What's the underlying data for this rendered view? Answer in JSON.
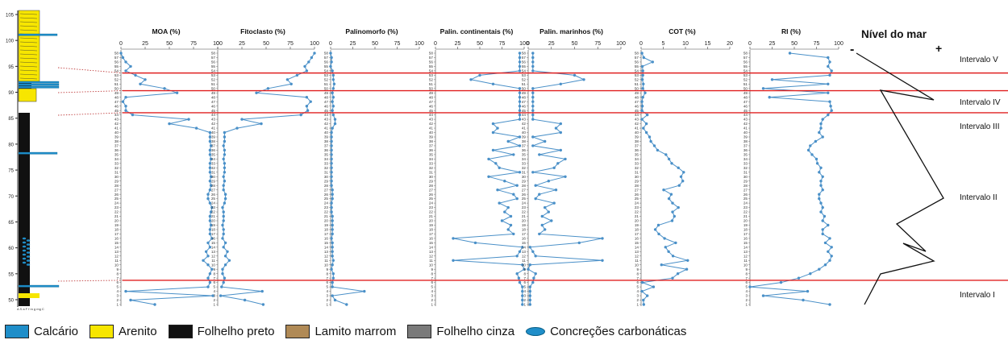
{
  "colors": {
    "series": "#4a90c8",
    "boundary": "#e02020",
    "connector": "#c04040",
    "sealevel": "#111111",
    "calcario": "#1f8ec9",
    "arenito": "#f7e600",
    "folhelho_preto": "#111111",
    "lamito_marrom": "#b08a56",
    "folhelho_cinza": "#7a7a7a",
    "concrecoes": "#1f8ec9"
  },
  "section": {
    "ticks": [
      "105",
      "100",
      "95",
      "90",
      "85",
      "80",
      "75",
      "70",
      "65",
      "60",
      "55",
      "50"
    ],
    "scale_label": "A  S  a F   f  m  g mg C"
  },
  "chart_data": {
    "type": "line",
    "samples": [
      "1",
      "2",
      "3",
      "4",
      "5",
      "6",
      "7",
      "8",
      "9",
      "10",
      "11",
      "12",
      "13",
      "14",
      "15",
      "16",
      "17",
      "18",
      "19",
      "20",
      "21",
      "22",
      "23",
      "24",
      "25",
      "26",
      "27",
      "28",
      "29",
      "30",
      "31",
      "32",
      "33",
      "34",
      "35",
      "36",
      "37",
      "38",
      "39",
      "40",
      "41",
      "42",
      "43",
      "44",
      "45",
      "46",
      "47",
      "48",
      "49",
      "50",
      "51",
      "52",
      "53",
      "54",
      "55",
      "56",
      "57",
      "58"
    ],
    "series": [
      {
        "name": "MOA (%)",
        "xlim": [
          0,
          100
        ],
        "ticks": [
          "0",
          "25",
          "50",
          "75",
          "100"
        ],
        "values": [
          35,
          10,
          95,
          5,
          90,
          92,
          90,
          92,
          94,
          90,
          85,
          90,
          88,
          92,
          90,
          94,
          92,
          92,
          93,
          92,
          92,
          93,
          94,
          92,
          90,
          90,
          92,
          93,
          92,
          93,
          92,
          92,
          92,
          93,
          92,
          92,
          93,
          92,
          92,
          92,
          78,
          50,
          70,
          12,
          5,
          5,
          2,
          5,
          58,
          45,
          20,
          25,
          15,
          5,
          10,
          5,
          2,
          0
        ]
      },
      {
        "name": "Fitoclasto (%)",
        "xlim": [
          0,
          100
        ],
        "ticks": [
          "0",
          "25",
          "50",
          "75",
          "100"
        ],
        "values": [
          47,
          28,
          3,
          46,
          4,
          6,
          7,
          5,
          5,
          8,
          12,
          8,
          10,
          6,
          8,
          5,
          6,
          6,
          5,
          6,
          6,
          6,
          5,
          7,
          8,
          8,
          6,
          6,
          7,
          6,
          7,
          7,
          7,
          6,
          7,
          7,
          6,
          7,
          7,
          7,
          20,
          45,
          25,
          86,
          93,
          92,
          96,
          92,
          40,
          52,
          76,
          72,
          82,
          92,
          90,
          94,
          97,
          100
        ]
      },
      {
        "name": "Palinomorfo (%)",
        "xlim": [
          0,
          100
        ],
        "ticks": [
          "0",
          "25",
          "50",
          "75",
          "100"
        ],
        "values": [
          18,
          5,
          2,
          38,
          2,
          2,
          3,
          3,
          1,
          2,
          3,
          2,
          2,
          2,
          2,
          1,
          2,
          2,
          2,
          2,
          2,
          1,
          1,
          1,
          2,
          2,
          2,
          1,
          1,
          1,
          1,
          1,
          1,
          1,
          1,
          1,
          1,
          1,
          1,
          1,
          2,
          5,
          5,
          3,
          2,
          3,
          2,
          3,
          2,
          3,
          4,
          3,
          3,
          2,
          0,
          1,
          1,
          0
        ]
      },
      {
        "name": "Palin. continentais (%)",
        "xlim": [
          0,
          100
        ],
        "ticks": [
          "0",
          "25",
          "50",
          "75",
          "100"
        ],
        "values": [
          98,
          98,
          98,
          98,
          98,
          95,
          94,
          92,
          100,
          98,
          20,
          92,
          95,
          98,
          45,
          20,
          88,
          82,
          85,
          75,
          85,
          78,
          82,
          72,
          92,
          88,
          70,
          92,
          78,
          60,
          95,
          72,
          68,
          60,
          88,
          65,
          95,
          82,
          95,
          65,
          70,
          65,
          95,
          95,
          95,
          95,
          95,
          95,
          95,
          95,
          65,
          40,
          50,
          95,
          95,
          95,
          95,
          95
        ]
      },
      {
        "name": "Palin. marinhos (%)",
        "xlim": [
          0,
          100
        ],
        "ticks": [
          "0",
          "25",
          "50",
          "75",
          "100"
        ],
        "values": [
          2,
          2,
          2,
          2,
          2,
          5,
          6,
          8,
          0,
          2,
          80,
          8,
          5,
          2,
          55,
          80,
          12,
          18,
          15,
          25,
          15,
          22,
          18,
          28,
          8,
          12,
          30,
          8,
          22,
          40,
          5,
          28,
          32,
          40,
          12,
          35,
          5,
          18,
          5,
          35,
          30,
          35,
          5,
          5,
          5,
          5,
          5,
          5,
          5,
          5,
          35,
          60,
          50,
          5,
          5,
          5,
          5,
          5
        ]
      },
      {
        "name": "COT (%)",
        "xlim": [
          0,
          20
        ],
        "ticks": [
          "0",
          "5",
          "10",
          "15",
          "20"
        ],
        "values": [
          0.6,
          0.5,
          1.4,
          0.2,
          2.8,
          0.3,
          7.1,
          8.3,
          10.3,
          4.6,
          10.5,
          7.2,
          6.2,
          5.5,
          7.8,
          5.3,
          4.0,
          3.2,
          3.9,
          7.0,
          7.5,
          7.1,
          8.4,
          7.1,
          6.3,
          6.8,
          5.1,
          8.6,
          9.4,
          9.0,
          9.6,
          8.4,
          6.9,
          6.3,
          5.6,
          3.7,
          3.0,
          2.2,
          1.9,
          1.2,
          0.5,
          1.2,
          0.2,
          1.4,
          0.2,
          0.3,
          0.2,
          0.4,
          0.9,
          0.4,
          0.5,
          0.3,
          0.4,
          0.4,
          0.3,
          2.6,
          0.6,
          0.2
        ]
      },
      {
        "name": "RI (%)",
        "xlim": [
          0,
          100
        ],
        "ticks": [
          "0",
          "25",
          "50",
          "75",
          "100"
        ],
        "values": [
          90,
          60,
          15,
          65,
          0,
          35,
          55,
          68,
          78,
          85,
          90,
          92,
          88,
          92,
          85,
          90,
          82,
          82,
          88,
          82,
          84,
          80,
          82,
          80,
          78,
          78,
          82,
          80,
          80,
          82,
          78,
          80,
          76,
          75,
          70,
          66,
          68,
          74,
          82,
          78,
          80,
          80,
          82,
          88,
          92,
          91,
          90,
          22,
          88,
          15,
          88,
          25,
          90,
          92,
          88,
          90,
          88,
          45
        ]
      }
    ]
  },
  "sea_level": {
    "title": "Nível do mar",
    "minus": "-",
    "plus": "+",
    "intervals": [
      "Intervalo V",
      "Intervalo IV",
      "Intervalo III",
      "Intervalo II",
      "Intervalo I"
    ]
  },
  "legend": [
    {
      "label": "Calcário",
      "swatch": "calcario"
    },
    {
      "label": "Arenito",
      "swatch": "arenito"
    },
    {
      "label": "Folhelho preto",
      "swatch": "folhelho_preto"
    },
    {
      "label": "Lamito marrom",
      "swatch": "lamito_marrom"
    },
    {
      "label": "Folhelho cinza",
      "swatch": "folhelho_cinza"
    },
    {
      "label": "Concreções carbonáticas",
      "swatch": "concrecoes",
      "shape": "ellipse"
    }
  ]
}
